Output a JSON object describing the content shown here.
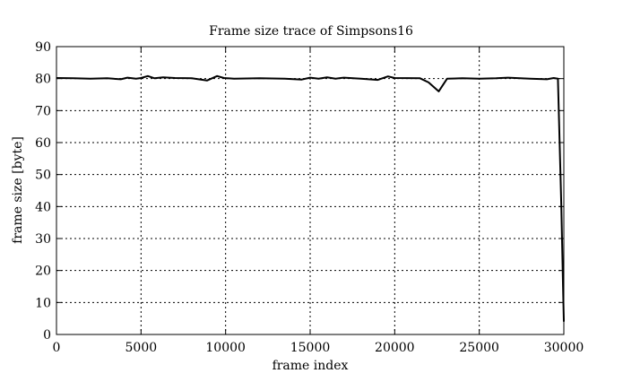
{
  "chart_data": {
    "type": "line",
    "title": "Frame size trace of Simpsons16",
    "xlabel": "frame index",
    "ylabel": "frame size [byte]",
    "xlim": [
      0,
      30000
    ],
    "ylim": [
      0,
      90
    ],
    "x_ticks": [
      0,
      5000,
      10000,
      15000,
      20000,
      25000,
      30000
    ],
    "y_ticks": [
      0,
      10,
      20,
      30,
      40,
      50,
      60,
      70,
      80,
      90
    ],
    "grid": true,
    "series": [
      {
        "color": "#000000",
        "points": [
          [
            0,
            80.2
          ],
          [
            1000,
            80.1
          ],
          [
            2000,
            80.0
          ],
          [
            3000,
            80.1
          ],
          [
            3800,
            79.8
          ],
          [
            4200,
            80.3
          ],
          [
            4700,
            80.0
          ],
          [
            5000,
            80.2
          ],
          [
            5400,
            80.8
          ],
          [
            5800,
            80.1
          ],
          [
            6300,
            80.4
          ],
          [
            7000,
            80.2
          ],
          [
            8000,
            80.1
          ],
          [
            8900,
            79.4
          ],
          [
            9500,
            80.8
          ],
          [
            9900,
            80.2
          ],
          [
            10500,
            80.0
          ],
          [
            12000,
            80.1
          ],
          [
            13500,
            80.0
          ],
          [
            14500,
            79.7
          ],
          [
            15000,
            80.3
          ],
          [
            15500,
            80.0
          ],
          [
            16000,
            80.4
          ],
          [
            16500,
            80.0
          ],
          [
            17000,
            80.3
          ],
          [
            18000,
            80.0
          ],
          [
            19000,
            79.6
          ],
          [
            19600,
            80.7
          ],
          [
            20000,
            80.2
          ],
          [
            21500,
            80.1
          ],
          [
            22000,
            78.8
          ],
          [
            22600,
            76.0
          ],
          [
            23100,
            80.0
          ],
          [
            24000,
            80.1
          ],
          [
            25000,
            80.0
          ],
          [
            26000,
            80.1
          ],
          [
            26700,
            80.3
          ],
          [
            28000,
            80.0
          ],
          [
            29000,
            79.8
          ],
          [
            29400,
            80.2
          ],
          [
            29650,
            80.0
          ],
          [
            29850,
            40.0
          ],
          [
            29950,
            15.0
          ],
          [
            30000,
            4.0
          ]
        ]
      }
    ]
  }
}
